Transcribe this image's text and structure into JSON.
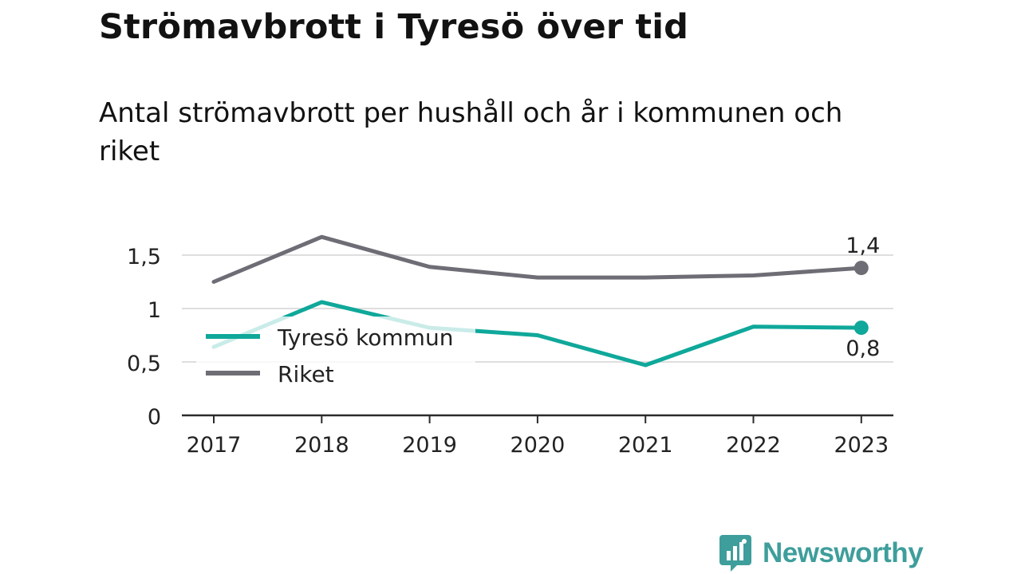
{
  "title": "Strömavbrott i Tyresö över tid",
  "subtitle": "Antal strömavbrott per hushåll och år i kommunen och riket",
  "brand": {
    "name": "Newsworthy",
    "icon": "newsworthy-logo-icon",
    "color": "#3e9e9b"
  },
  "chart_data": {
    "type": "line",
    "categories": [
      "2017",
      "2018",
      "2019",
      "2020",
      "2021",
      "2022",
      "2023"
    ],
    "ylim": [
      0,
      1.75
    ],
    "yticks": [
      0,
      0.5,
      1,
      1.5
    ],
    "ytick_labels": [
      "0",
      "0,5",
      "1",
      "1,5"
    ],
    "grid": true,
    "legend_position": "left-inside",
    "series": [
      {
        "name": "Tyresö kommun",
        "color": "#0fa89a",
        "values": [
          0.64,
          1.06,
          0.82,
          0.75,
          0.47,
          0.83,
          0.82
        ],
        "end_label": "0,8"
      },
      {
        "name": "Riket",
        "color": "#6e6d75",
        "values": [
          1.25,
          1.67,
          1.39,
          1.29,
          1.29,
          1.31,
          1.38
        ],
        "end_label": "1,4"
      }
    ]
  }
}
